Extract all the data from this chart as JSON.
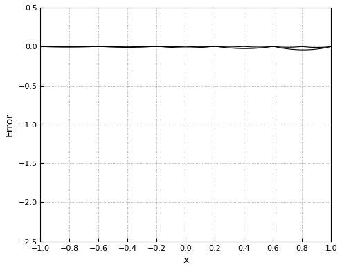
{
  "title": "",
  "xlabel": "x",
  "ylabel": "Error",
  "xlim": [
    -1,
    1
  ],
  "ylim": [
    -2.5,
    0.5
  ],
  "xticks": [
    -1,
    -0.8,
    -0.6,
    -0.4,
    -0.2,
    0,
    0.2,
    0.4,
    0.6,
    0.8,
    1
  ],
  "yticks": [
    -2.5,
    -2,
    -1.5,
    -1,
    -0.5,
    0,
    0.5
  ],
  "grid": true,
  "line_color": "#000000",
  "n_elements_list": [
    5,
    10
  ],
  "figsize": [
    4.94,
    3.9
  ],
  "dpi": 100
}
